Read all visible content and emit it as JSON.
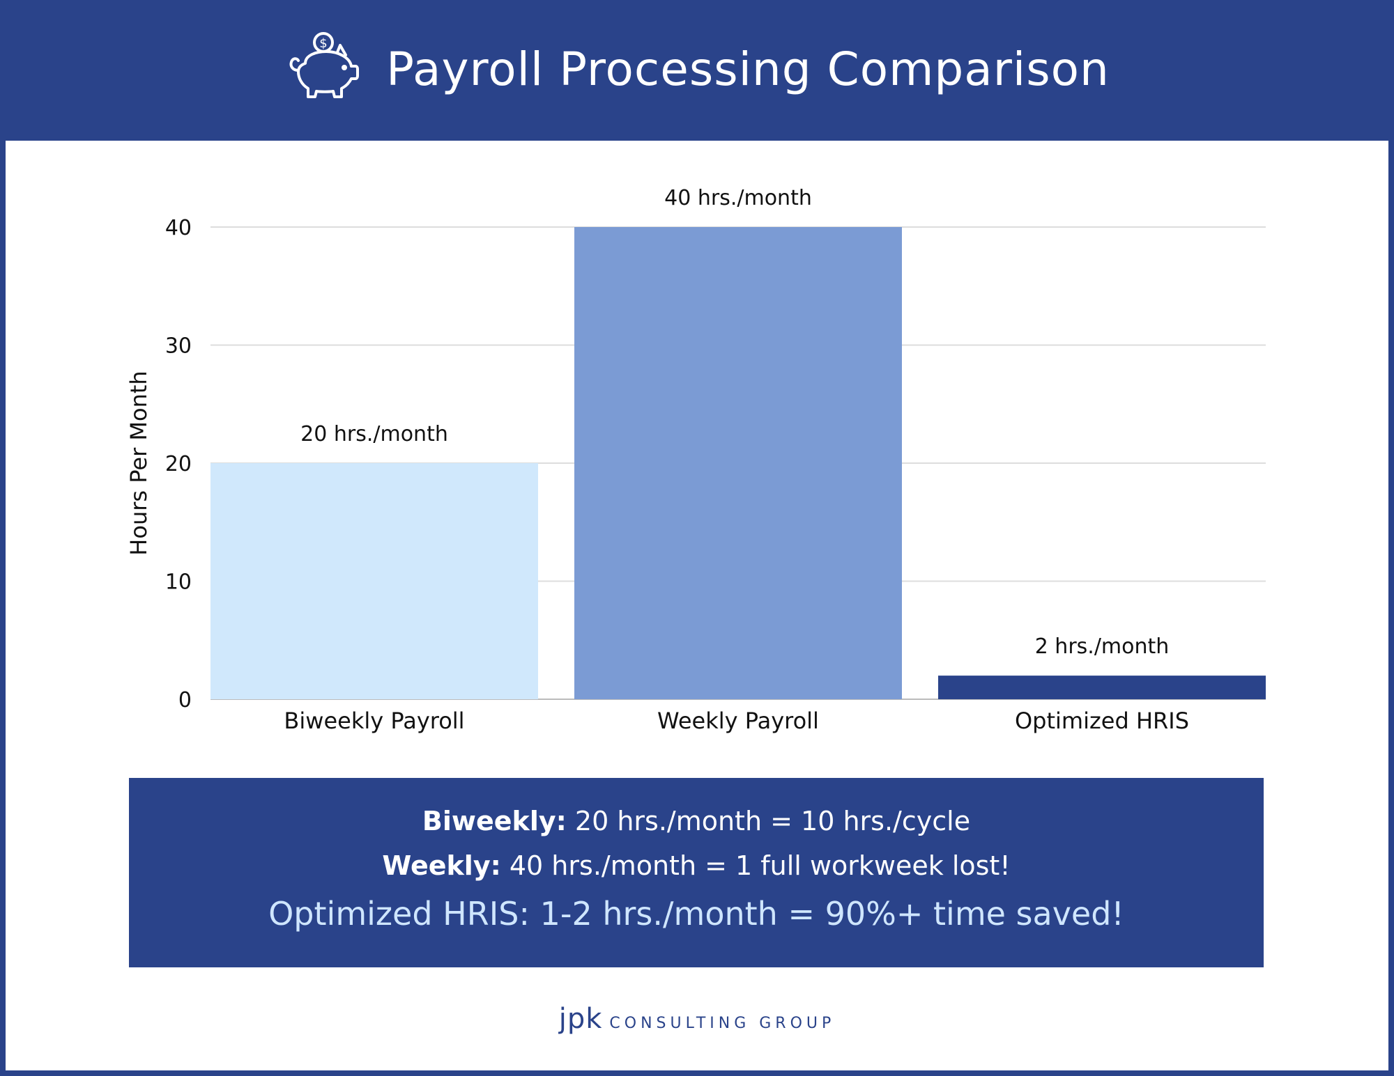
{
  "header": {
    "title": "Payroll Processing Comparison",
    "icon": "piggy-bank-icon"
  },
  "chart_data": {
    "type": "bar",
    "title": "",
    "xlabel": "",
    "ylabel": "Hours Per Month",
    "categories": [
      "Biweekly Payroll",
      "Weekly Payroll",
      "Optimized HRIS"
    ],
    "values": [
      20,
      40,
      2
    ],
    "data_labels": [
      "20 hrs./month",
      "40 hrs./month",
      "2 hrs./month"
    ],
    "colors": [
      "#d0e8fc",
      "#7b9bd4",
      "#2a438a"
    ],
    "ylim": [
      0,
      40
    ],
    "yticks": [
      0,
      10,
      20,
      30,
      40
    ],
    "grid": true,
    "legend": "none"
  },
  "info": {
    "line1_label": "Biweekly:",
    "line1_text": " 20 hrs./month = 10 hrs./cycle",
    "line2_label": "Weekly:",
    "line2_text": " 40 hrs./month = 1 full workweek lost!",
    "line3_text": "Optimized HRIS: 1-2 hrs./month = 90%+ time saved!"
  },
  "footer": {
    "logo_text": "jpk",
    "company": "CONSULTING GROUP"
  },
  "colors": {
    "brand": "#2a438a",
    "highlight": "#cfe6ff"
  }
}
